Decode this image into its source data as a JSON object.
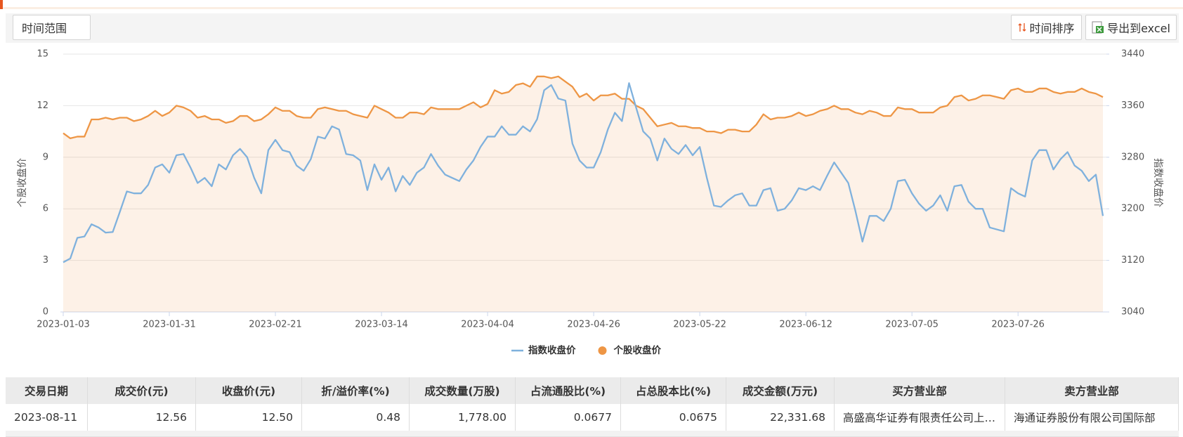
{
  "toolbar": {
    "range_button": "时间范围",
    "sort_button": "时间排序",
    "export_button": "导出到excel"
  },
  "chart_data": {
    "type": "line",
    "categories": [
      "2023-01-03",
      null,
      null,
      null,
      null,
      null,
      null,
      null,
      null,
      null,
      null,
      null,
      null,
      null,
      null,
      "2023-01-31",
      null,
      null,
      null,
      null,
      null,
      null,
      null,
      null,
      null,
      null,
      null,
      null,
      null,
      null,
      "2023-02-21",
      null,
      null,
      null,
      null,
      null,
      null,
      null,
      null,
      null,
      null,
      null,
      null,
      null,
      null,
      "2023-03-14",
      null,
      null,
      null,
      null,
      null,
      null,
      null,
      null,
      null,
      null,
      null,
      null,
      null,
      null,
      "2023-04-04",
      null,
      null,
      null,
      null,
      null,
      null,
      null,
      null,
      null,
      null,
      null,
      null,
      null,
      null,
      "2023-04-26",
      null,
      null,
      null,
      null,
      null,
      null,
      null,
      null,
      null,
      null,
      null,
      null,
      null,
      null,
      "2023-05-22",
      null,
      null,
      null,
      null,
      null,
      null,
      null,
      null,
      null,
      null,
      null,
      null,
      null,
      null,
      "2023-06-12",
      null,
      null,
      null,
      null,
      null,
      null,
      null,
      null,
      null,
      null,
      null,
      null,
      null,
      null,
      "2023-07-05",
      null,
      null,
      null,
      null,
      null,
      null,
      null,
      null,
      null,
      null,
      null,
      null,
      null,
      null,
      "2023-07-26",
      null,
      null,
      null,
      null,
      null,
      null,
      null,
      null,
      null,
      null,
      null,
      null
    ],
    "series": [
      {
        "name": "指数收盘价",
        "color": "#7fb1dd",
        "axis": "y2",
        "values": [
          3117,
          3123,
          3155,
          3157,
          3176,
          3171,
          3163,
          3164,
          3195,
          3227,
          3224,
          3224,
          3237,
          3264,
          3269,
          3256,
          3283,
          3285,
          3264,
          3240,
          3248,
          3235,
          3269,
          3261,
          3283,
          3293,
          3280,
          3248,
          3224,
          3291,
          3307,
          3291,
          3288,
          3267,
          3259,
          3277,
          3312,
          3309,
          3328,
          3323,
          3285,
          3283,
          3275,
          3229,
          3269,
          3245,
          3264,
          3227,
          3251,
          3237,
          3256,
          3264,
          3285,
          3267,
          3253,
          3248,
          3243,
          3261,
          3275,
          3296,
          3312,
          3312,
          3328,
          3315,
          3315,
          3328,
          3320,
          3339,
          3384,
          3392,
          3371,
          3368,
          3301,
          3275,
          3264,
          3264,
          3288,
          3323,
          3349,
          3336,
          3395,
          3357,
          3320,
          3309,
          3275,
          3309,
          3293,
          3285,
          3299,
          3283,
          3296,
          3248,
          3205,
          3203,
          3213,
          3221,
          3224,
          3205,
          3205,
          3229,
          3232,
          3197,
          3200,
          3213,
          3232,
          3229,
          3235,
          3229,
          3251,
          3272,
          3256,
          3240,
          3197,
          3149,
          3189,
          3189,
          3181,
          3200,
          3243,
          3245,
          3224,
          3208,
          3197,
          3205,
          3221,
          3197,
          3235,
          3237,
          3211,
          3200,
          3200,
          3171,
          3168,
          3165,
          3232,
          3224,
          3219,
          3275,
          3291,
          3291,
          3261,
          3277,
          3288,
          3267,
          3259,
          3243,
          3253,
          3189
        ]
      },
      {
        "name": "个股收盘价",
        "color": "#ee9645",
        "area": true,
        "values": [
          10.4,
          10.1,
          10.2,
          10.2,
          11.2,
          11.2,
          11.3,
          11.2,
          11.3,
          11.3,
          11.1,
          11.2,
          11.4,
          11.7,
          11.4,
          11.6,
          12.0,
          11.9,
          11.7,
          11.3,
          11.4,
          11.2,
          11.2,
          11.0,
          11.1,
          11.4,
          11.4,
          11.1,
          11.2,
          11.5,
          11.9,
          11.7,
          11.7,
          11.4,
          11.3,
          11.3,
          11.8,
          11.9,
          11.8,
          11.7,
          11.7,
          11.5,
          11.4,
          11.3,
          12.0,
          11.8,
          11.6,
          11.3,
          11.3,
          11.6,
          11.6,
          11.5,
          11.9,
          11.8,
          11.8,
          11.8,
          11.8,
          12.0,
          12.2,
          11.9,
          12.1,
          12.9,
          12.7,
          12.8,
          13.2,
          13.3,
          13.1,
          13.7,
          13.7,
          13.6,
          13.7,
          13.4,
          13.1,
          12.5,
          12.7,
          12.3,
          12.6,
          12.6,
          12.7,
          12.4,
          12.4,
          12.0,
          11.8,
          11.3,
          10.8,
          10.9,
          11.0,
          10.8,
          10.8,
          10.7,
          10.7,
          10.5,
          10.5,
          10.4,
          10.6,
          10.6,
          10.5,
          10.5,
          10.9,
          11.5,
          11.2,
          11.3,
          11.3,
          11.4,
          11.6,
          11.4,
          11.5,
          11.7,
          11.8,
          12.0,
          11.8,
          11.8,
          11.6,
          11.5,
          11.7,
          11.6,
          11.4,
          11.4,
          11.9,
          11.8,
          11.8,
          11.6,
          11.6,
          11.6,
          11.9,
          12.0,
          12.5,
          12.6,
          12.3,
          12.4,
          12.6,
          12.6,
          12.5,
          12.4,
          12.9,
          13.0,
          12.8,
          12.8,
          13.0,
          13.0,
          12.8,
          12.7,
          12.8,
          12.8,
          13.0,
          12.8,
          12.7,
          12.5
        ]
      }
    ],
    "ylabel": "个股收盘价",
    "y2label": "指数收盘价",
    "ylim": [
      0,
      15
    ],
    "yticks": [
      0,
      3,
      6,
      9,
      12,
      15
    ],
    "y2lim": [
      3040,
      3440
    ],
    "y2ticks": [
      3040,
      3120,
      3200,
      3280,
      3360,
      3440
    ],
    "grid": true,
    "legend": "bottom"
  },
  "table": {
    "headers": [
      "交易日期",
      "成交价(元)",
      "收盘价(元)",
      "折/溢价率(%)",
      "成交数量(万股)",
      "占流通股比(%)",
      "占总股本比(%)",
      "成交金额(万元)",
      "买方营业部",
      "卖方营业部"
    ],
    "rows": [
      [
        "2023-08-11",
        "12.56",
        "12.50",
        "0.48",
        "1,778.00",
        "0.0677",
        "0.0675",
        "22,331.68",
        "高盛高华证券有限责任公司上…",
        "海通证券股份有限公司国际部"
      ]
    ]
  }
}
